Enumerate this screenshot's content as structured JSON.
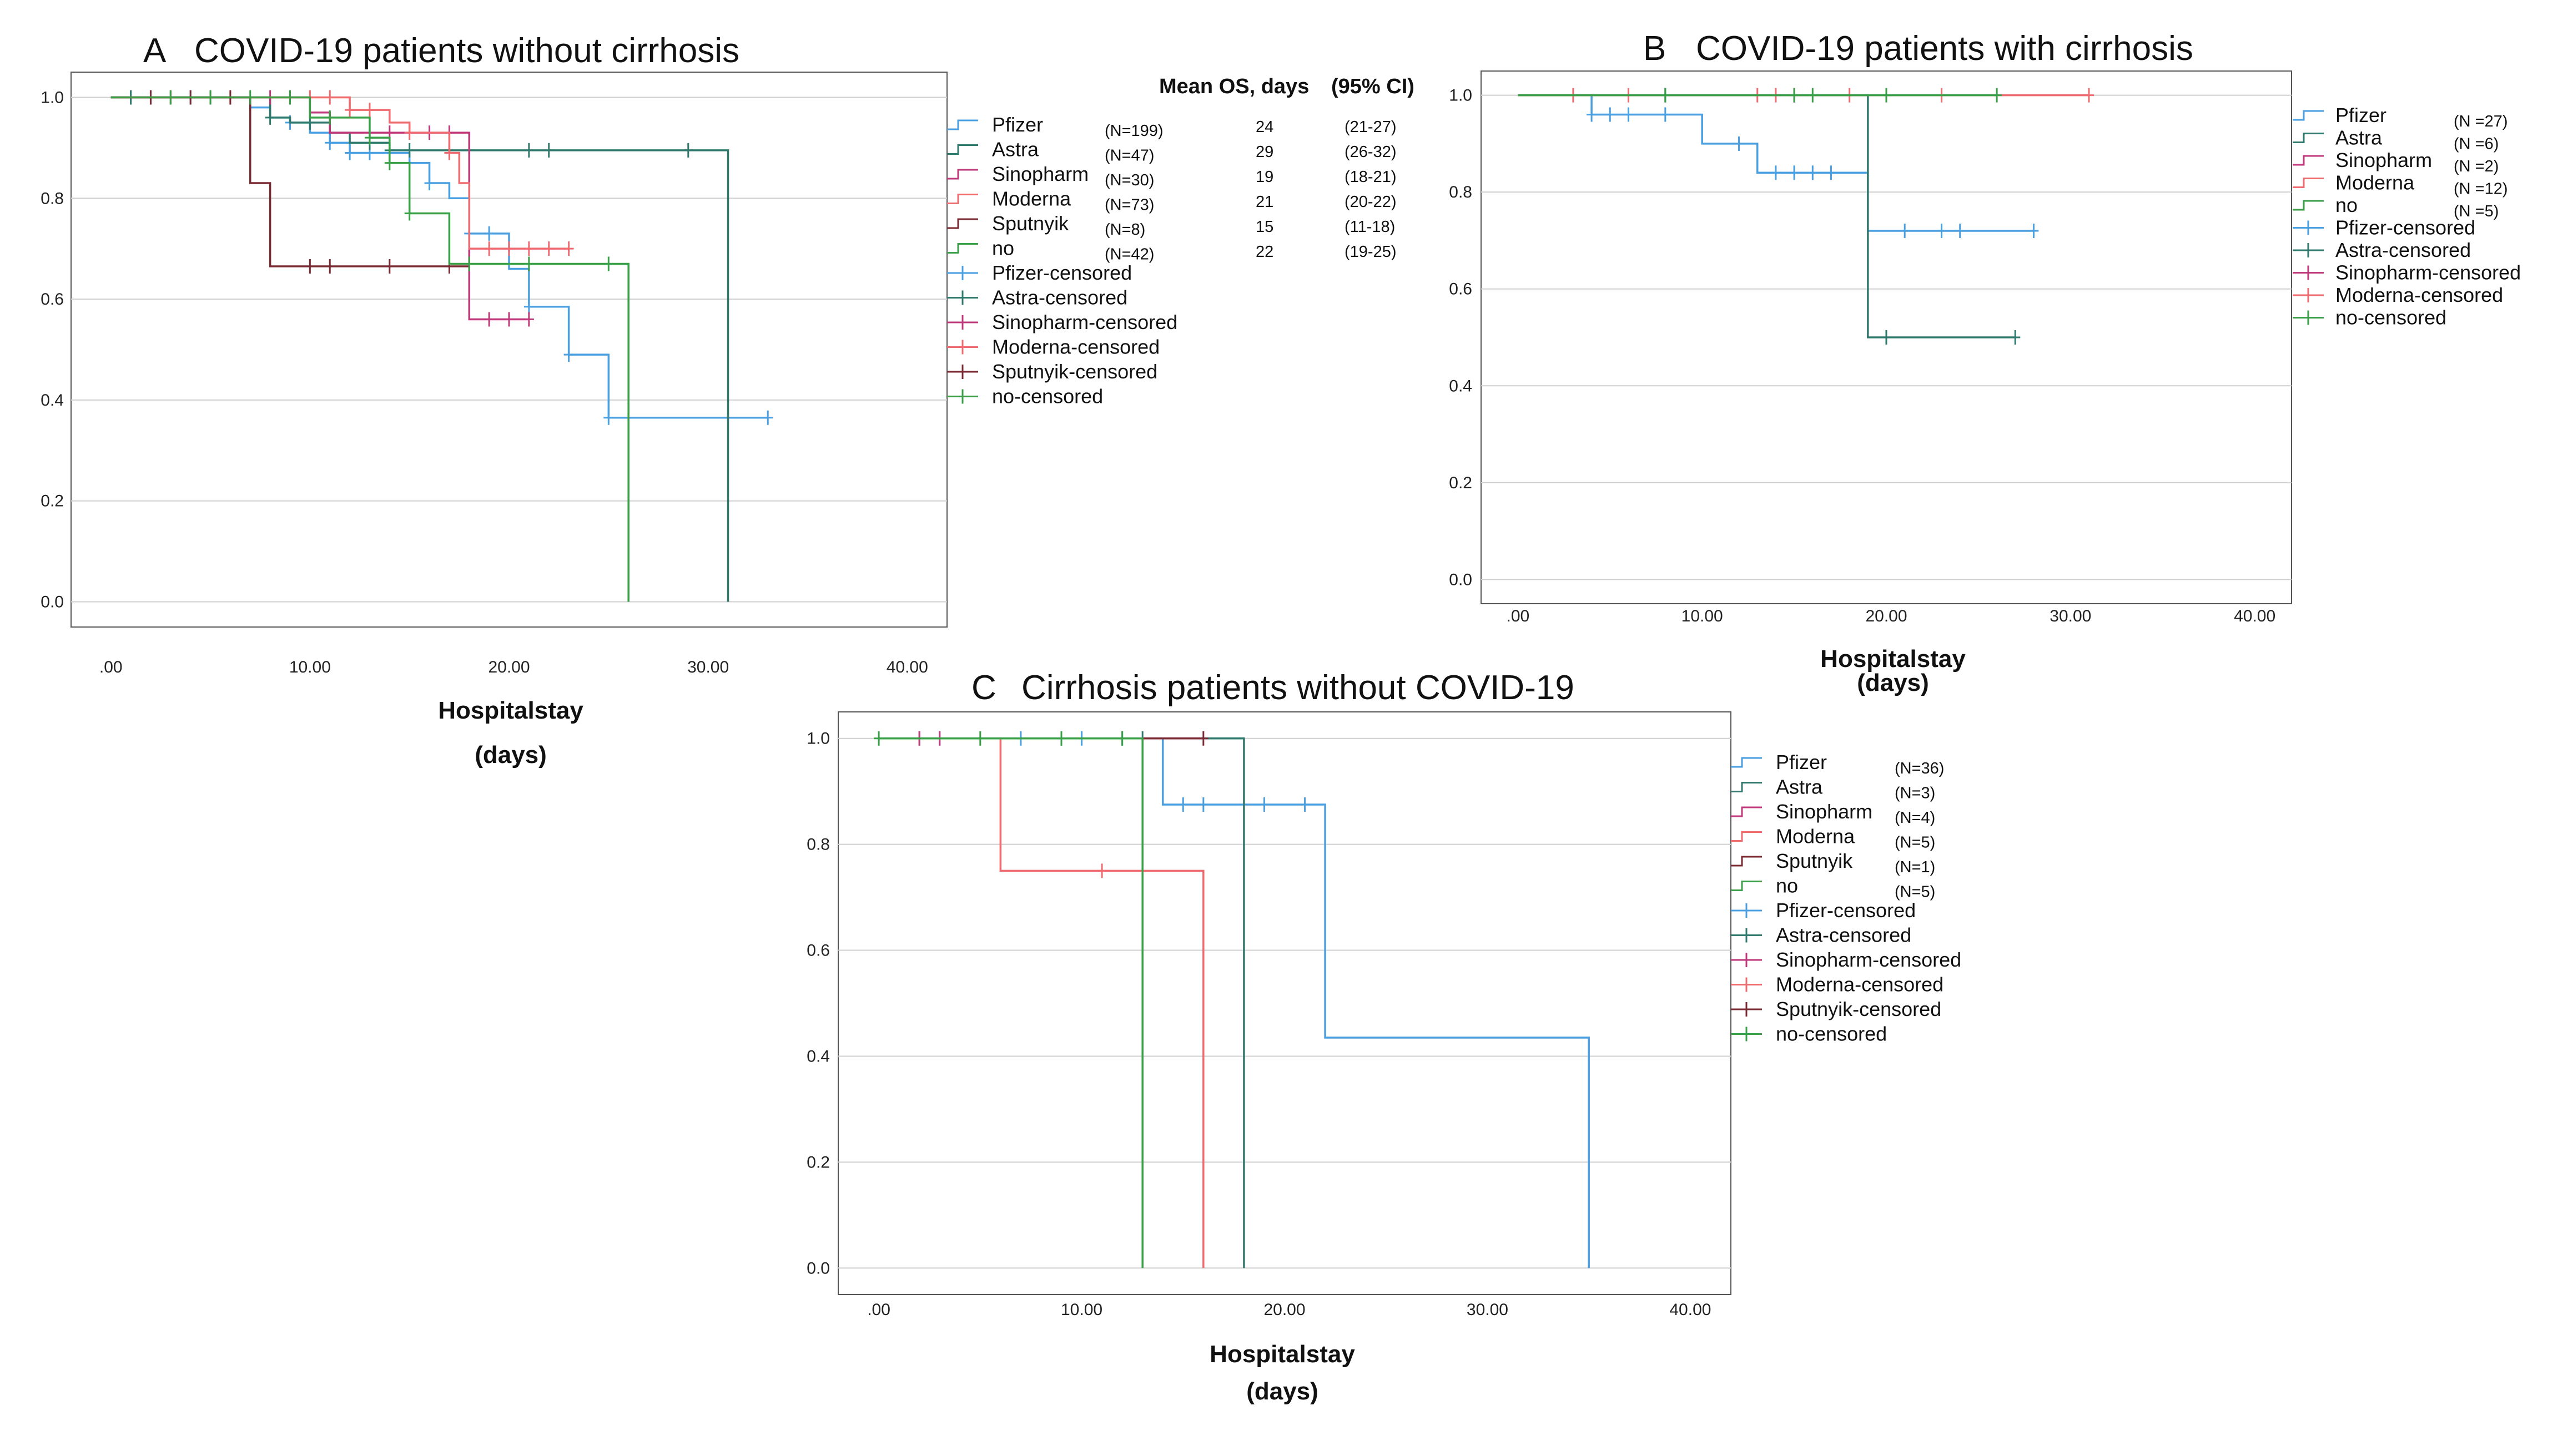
{
  "colors": {
    "Pfizer": "#4a9fe0",
    "Astra": "#2f7a6c",
    "Sinopharm": "#c0397a",
    "Moderna": "#ee6b6f",
    "Sputnyik": "#7a2a32",
    "no": "#3aa048",
    "grid": "#cfcfcf",
    "frame": "#555555"
  },
  "chart_data": [
    {
      "type": "line",
      "id": "A",
      "letter": "A",
      "title": "COVID-19 patients without cirrhosis",
      "xlabel": "Hospitalstay",
      "xlabel2": "(days)",
      "xlim": [
        -2,
        42
      ],
      "ylim": [
        -0.05,
        1.05
      ],
      "x_ticks": [
        0,
        10,
        20,
        30,
        40
      ],
      "x_tick_labels": [
        ".00",
        "10.00",
        "20.00",
        "30.00",
        "40.00"
      ],
      "y_ticks": [
        0,
        0.2,
        0.4,
        0.6,
        0.8,
        1.0
      ],
      "y_tick_labels": [
        "0.0",
        "0.2",
        "0.4",
        "0.6",
        "0.8",
        "1.0"
      ],
      "grid": true,
      "legend_entries": [
        "Pfizer",
        "Astra",
        "Sinopharm",
        "Moderna",
        "Sputnyik",
        "no",
        "Pfizer-censored",
        "Astra-censored",
        "Sinopharm-censored",
        "Moderna-censored",
        "Sputnyik-censored",
        "no-censored"
      ],
      "legend_counts": [
        "(N=199)",
        "(N=47)",
        "(N=30)",
        "(N=73)",
        "(N=8)",
        "(N=42)"
      ],
      "mean_os_header": "Mean OS, days",
      "mean_os_ci_header": "(95% CI)",
      "mean_os": [
        "24",
        "29",
        "19",
        "21",
        "15",
        "22"
      ],
      "mean_os_ci": [
        "(21-27)",
        "(26-32)",
        "(18-21)",
        "(20-22)",
        "(11-18)",
        "(19-25)"
      ],
      "series": [
        {
          "name": "Pfizer",
          "steps": [
            [
              0,
              1.0
            ],
            [
              7,
              0.98
            ],
            [
              8,
              0.96
            ],
            [
              9,
              0.95
            ],
            [
              10,
              0.93
            ],
            [
              11,
              0.91
            ],
            [
              12,
              0.89
            ],
            [
              15,
              0.87
            ],
            [
              16,
              0.83
            ],
            [
              17,
              0.8
            ],
            [
              18,
              0.73
            ],
            [
              20,
              0.66
            ],
            [
              21,
              0.585
            ],
            [
              23,
              0.49
            ],
            [
              25,
              0.365
            ]
          ],
          "end": 33,
          "censored": [
            1,
            2,
            4,
            5,
            9,
            11,
            12,
            13,
            14,
            16,
            18,
            19,
            21,
            23,
            25,
            33
          ]
        },
        {
          "name": "Astra",
          "steps": [
            [
              0,
              1.0
            ],
            [
              8,
              0.96
            ],
            [
              9,
              0.95
            ],
            [
              11,
              0.93
            ],
            [
              12,
              0.91
            ],
            [
              14,
              0.895
            ],
            [
              31,
              0.0
            ]
          ],
          "end": 31,
          "censored": [
            1,
            3,
            5,
            8,
            10,
            13,
            14,
            15,
            17,
            18,
            21,
            22,
            29
          ]
        },
        {
          "name": "Sinopharm",
          "steps": [
            [
              0,
              1.0
            ],
            [
              10,
              0.97
            ],
            [
              11,
              0.93
            ],
            [
              18,
              0.56
            ]
          ],
          "end": 21,
          "censored": [
            2,
            5,
            8,
            14,
            16,
            17,
            19,
            20,
            21
          ]
        },
        {
          "name": "Moderna",
          "steps": [
            [
              0,
              1.0
            ],
            [
              12,
              0.975
            ],
            [
              14,
              0.95
            ],
            [
              15,
              0.93
            ],
            [
              17,
              0.89
            ],
            [
              17.5,
              0.83
            ],
            [
              18,
              0.7
            ]
          ],
          "end": 23,
          "censored": [
            3,
            6,
            9,
            10,
            11,
            12,
            13,
            15,
            17,
            19,
            20,
            21,
            22,
            23
          ]
        },
        {
          "name": "Sputnyik",
          "steps": [
            [
              0,
              1.0
            ],
            [
              7,
              0.83
            ],
            [
              8,
              0.665
            ]
          ],
          "end": 18,
          "censored": [
            2,
            4,
            6,
            10,
            11,
            14,
            17
          ]
        },
        {
          "name": "no",
          "steps": [
            [
              0,
              1.0
            ],
            [
              10,
              0.96
            ],
            [
              13,
              0.92
            ],
            [
              14,
              0.87
            ],
            [
              15,
              0.77
            ],
            [
              17,
              0.67
            ],
            [
              25,
              0.67
            ],
            [
              26,
              0.0
            ]
          ],
          "end": 26,
          "censored": [
            3,
            5,
            7,
            9,
            11,
            13,
            14,
            15,
            18,
            21,
            25
          ]
        }
      ]
    },
    {
      "type": "line",
      "id": "B",
      "letter": "B",
      "title": "COVID-19 patients with cirrhosis",
      "xlabel": "Hospitalstay",
      "xlabel2": "(days)",
      "xlim": [
        -2,
        42
      ],
      "ylim": [
        -0.05,
        1.05
      ],
      "x_ticks": [
        0,
        10,
        20,
        30,
        40
      ],
      "x_tick_labels": [
        ".00",
        "10.00",
        "20.00",
        "30.00",
        "40.00"
      ],
      "y_ticks": [
        0,
        0.2,
        0.4,
        0.6,
        0.8,
        1.0
      ],
      "y_tick_labels": [
        "0.0",
        "0.2",
        "0.4",
        "0.6",
        "0.8",
        "1.0"
      ],
      "grid": true,
      "legend_entries": [
        "Pfizer",
        "Astra",
        "Sinopharm",
        "Moderna",
        "no",
        "Pfizer-censored",
        "Astra-censored",
        "Sinopharm-censored",
        "Moderna-censored",
        "no-censored"
      ],
      "legend_counts": [
        "(N =27)",
        "(N =6)",
        "(N =2)",
        "(N =12)",
        "(N =5)"
      ],
      "series": [
        {
          "name": "Pfizer",
          "steps": [
            [
              0,
              1.0
            ],
            [
              4,
              0.96
            ],
            [
              10,
              0.9
            ],
            [
              13,
              0.84
            ],
            [
              19,
              0.72
            ]
          ],
          "end": 28,
          "censored": [
            4,
            5,
            6,
            8,
            12,
            14,
            15,
            16,
            17,
            21,
            23,
            24,
            28
          ]
        },
        {
          "name": "Astra",
          "steps": [
            [
              0,
              1.0
            ],
            [
              19,
              0.5
            ]
          ],
          "end": 27,
          "censored": [
            8,
            15,
            20,
            27
          ]
        },
        {
          "name": "Sinopharm",
          "steps": [
            [
              0,
              1.0
            ]
          ],
          "end": 15,
          "censored": [
            15
          ]
        },
        {
          "name": "Moderna",
          "steps": [
            [
              0,
              1.0
            ]
          ],
          "end": 31,
          "censored": [
            3,
            6,
            13,
            14,
            18,
            23,
            31
          ]
        },
        {
          "name": "no",
          "steps": [
            [
              0,
              1.0
            ]
          ],
          "end": 26,
          "censored": [
            8,
            15,
            16,
            20,
            26
          ]
        }
      ]
    },
    {
      "type": "line",
      "id": "C",
      "letter": "C",
      "title": "Cirrhosis patients without COVID-19",
      "xlabel": "Hospitalstay",
      "xlabel2": "(days)",
      "xlim": [
        -2,
        42
      ],
      "ylim": [
        -0.05,
        1.05
      ],
      "x_ticks": [
        0,
        10,
        20,
        30,
        40
      ],
      "x_tick_labels": [
        ".00",
        "10.00",
        "20.00",
        "30.00",
        "40.00"
      ],
      "y_ticks": [
        0,
        0.2,
        0.4,
        0.6,
        0.8,
        1.0
      ],
      "y_tick_labels": [
        "0.0",
        "0.2",
        "0.4",
        "0.6",
        "0.8",
        "1.0"
      ],
      "grid": true,
      "legend_entries": [
        "Pfizer",
        "Astra",
        "Sinopharm",
        "Moderna",
        "Sputnyik",
        "no",
        "Pfizer-censored",
        "Astra-censored",
        "Sinopharm-censored",
        "Moderna-censored",
        "Sputnyik-censored",
        "no-censored"
      ],
      "legend_counts": [
        "(N=36)",
        "(N=3)",
        "(N=4)",
        "(N=5)",
        "(N=1)",
        "(N=5)"
      ],
      "series": [
        {
          "name": "Pfizer",
          "steps": [
            [
              0,
              1.0
            ],
            [
              14,
              0.875
            ],
            [
              22,
              0.435
            ],
            [
              35,
              0.0
            ]
          ],
          "end": 35,
          "censored": [
            3,
            7,
            10,
            12,
            15,
            16,
            18,
            19,
            21
          ]
        },
        {
          "name": "Astra",
          "steps": [
            [
              0,
              1.0
            ],
            [
              18,
              0.0
            ]
          ],
          "end": 18,
          "censored": [
            2,
            9,
            13
          ]
        },
        {
          "name": "Sinopharm",
          "steps": [
            [
              0,
              1.0
            ]
          ],
          "end": 3,
          "censored": [
            2,
            3
          ]
        },
        {
          "name": "Moderna",
          "steps": [
            [
              0,
              1.0
            ],
            [
              6,
              0.75
            ],
            [
              16,
              0.0
            ]
          ],
          "end": 16,
          "censored": [
            11
          ]
        },
        {
          "name": "Sputnyik",
          "steps": [
            [
              0,
              1.0
            ]
          ],
          "end": 16,
          "censored": [
            16
          ]
        },
        {
          "name": "no",
          "steps": [
            [
              0,
              1.0
            ],
            [
              13,
              0.0
            ]
          ],
          "end": 13,
          "censored": [
            0,
            5,
            9,
            12
          ]
        }
      ]
    }
  ]
}
